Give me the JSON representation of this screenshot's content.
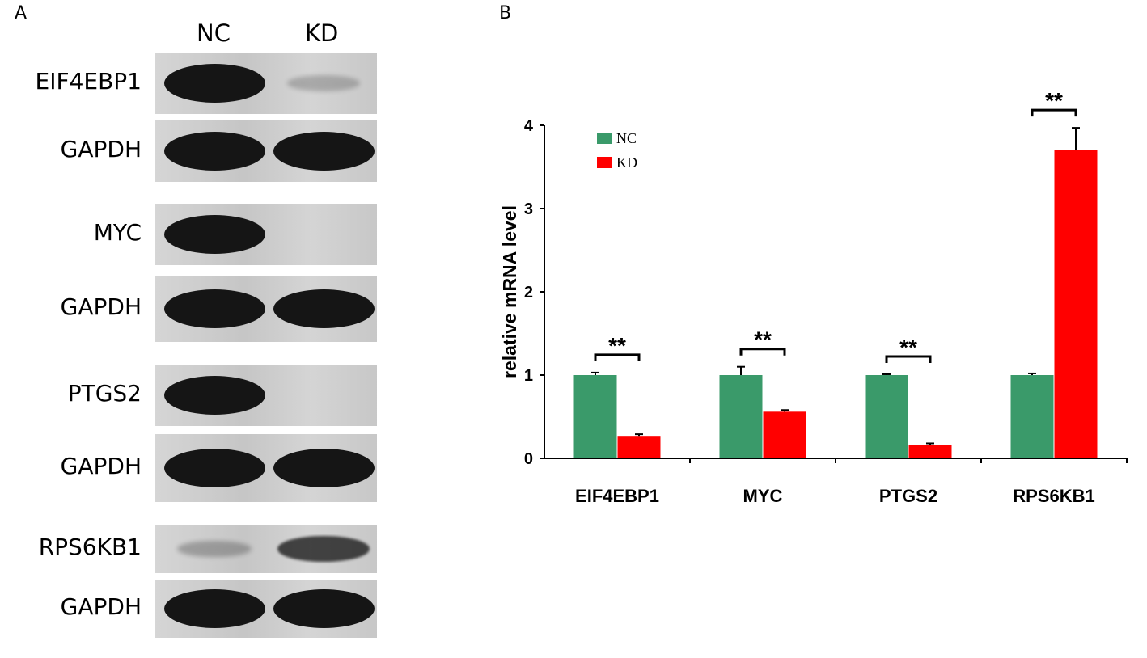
{
  "panel_a": {
    "label": "A",
    "lanes": [
      "NC",
      "KD"
    ],
    "blots": [
      {
        "label": "EIF4EBP1",
        "bands": [
          1.0,
          0.25
        ]
      },
      {
        "label": "GAPDH",
        "bands": [
          1.0,
          1.0
        ]
      },
      {
        "label": "MYC",
        "bands": [
          1.0,
          0.0
        ]
      },
      {
        "label": "GAPDH",
        "bands": [
          1.0,
          1.0
        ]
      },
      {
        "label": "PTGS2",
        "bands": [
          1.0,
          0.0
        ]
      },
      {
        "label": "GAPDH",
        "bands": [
          1.0,
          1.0
        ]
      },
      {
        "label": "RPS6KB1",
        "bands": [
          0.3,
          0.85
        ]
      },
      {
        "label": "GAPDH",
        "bands": [
          1.0,
          1.0
        ]
      }
    ]
  },
  "panel_b": {
    "label": "B"
  },
  "colors": {
    "NC": "#3a9a6a",
    "KD": "#ff0000"
  },
  "chart_data": {
    "type": "bar",
    "title": "",
    "xlabel": "",
    "ylabel": "relative mRNA level",
    "categories": [
      "EIF4EBP1",
      "MYC",
      "PTGS2",
      "RPS6KB1"
    ],
    "series": [
      {
        "name": "NC",
        "values": [
          1.0,
          1.0,
          1.0,
          1.0
        ],
        "errors": [
          0.03,
          0.1,
          0.01,
          0.02
        ]
      },
      {
        "name": "KD",
        "values": [
          0.27,
          0.56,
          0.16,
          3.7
        ],
        "errors": [
          0.02,
          0.02,
          0.02,
          0.27
        ]
      }
    ],
    "significance": [
      "**",
      "**",
      "**",
      "**"
    ],
    "ylim": [
      0,
      4
    ],
    "yticks": [
      0,
      1,
      2,
      3,
      4
    ],
    "legend": "top-left",
    "grid": false
  }
}
